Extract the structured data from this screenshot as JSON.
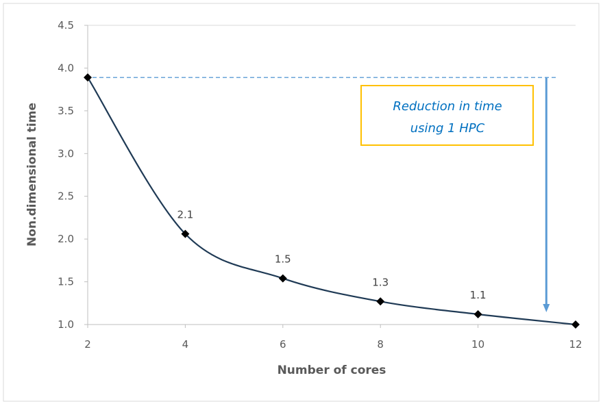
{
  "chart_data": {
    "type": "line",
    "xlabel": "Number of cores",
    "ylabel": "Non.dimensional time",
    "xlim": [
      2,
      12
    ],
    "ylim": [
      1.0,
      4.5
    ],
    "x_ticks": [
      "2",
      "4",
      "6",
      "8",
      "10",
      "12"
    ],
    "y_ticks": [
      "1.0",
      "1.5",
      "2.0",
      "2.5",
      "3.0",
      "3.5",
      "4.0",
      "4.5"
    ],
    "grid": false,
    "smooth": true,
    "marker": "diamond",
    "series": [
      {
        "x": [
          2,
          4,
          6,
          8,
          10,
          12
        ],
        "y": [
          3.89,
          2.06,
          1.54,
          1.27,
          1.12,
          1.0
        ],
        "data_labels": [
          "",
          "2.1",
          "1.5",
          "1.3",
          "1.1",
          ""
        ]
      }
    ],
    "annotation": {
      "lines": [
        "Reduction in time",
        "using 1 HPC"
      ],
      "reference_level": 3.89,
      "arrow_x": 11.4
    },
    "colors": {
      "line": "#1f3a55",
      "marker": "#000000",
      "reference": "#5b9bd5",
      "box_border": "#ffc000",
      "annotation_text": "#0070c0"
    }
  }
}
